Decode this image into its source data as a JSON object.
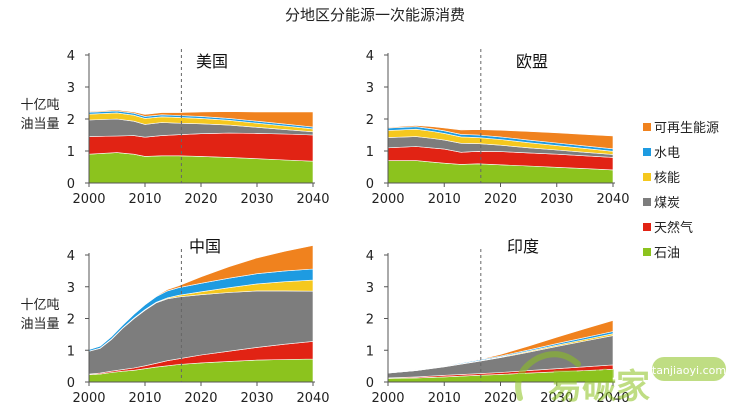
{
  "title": "分地区分能源一次能源消费",
  "ylabel": "十亿吨\n油当量",
  "legend": [
    {
      "label": "可再生能源",
      "color": "#F0821E"
    },
    {
      "label": "水电",
      "color": "#1E9BE1"
    },
    {
      "label": "核能",
      "color": "#F5C81E"
    },
    {
      "label": "煤炭",
      "color": "#7D7D7D"
    },
    {
      "label": "天然气",
      "color": "#E12314"
    },
    {
      "label": "石油",
      "color": "#8CC31E"
    }
  ],
  "watermark": {
    "text": "易碳家",
    "domain": "tanjiaoyi.com"
  },
  "chart_data": [
    {
      "type": "area",
      "title": "美国",
      "x": [
        2000,
        2005,
        2008,
        2010,
        2013,
        2016,
        2020,
        2025,
        2030,
        2035,
        2040
      ],
      "xticks": [
        2000,
        2010,
        2020,
        2030,
        2040
      ],
      "xlim": [
        2000,
        2040
      ],
      "ylim": [
        0,
        4
      ],
      "yticks": [
        0,
        1,
        2,
        3,
        4
      ],
      "divider": 2016.5,
      "stack_order": [
        "石油",
        "天然气",
        "煤炭",
        "核能",
        "水电",
        "可再生能源"
      ],
      "series": [
        {
          "name": "石油",
          "values": [
            0.9,
            0.95,
            0.9,
            0.83,
            0.85,
            0.85,
            0.83,
            0.8,
            0.76,
            0.72,
            0.68
          ]
        },
        {
          "name": "天然气",
          "values": [
            0.55,
            0.52,
            0.58,
            0.6,
            0.63,
            0.66,
            0.71,
            0.76,
            0.79,
            0.81,
            0.82
          ]
        },
        {
          "name": "煤炭",
          "values": [
            0.52,
            0.53,
            0.45,
            0.4,
            0.41,
            0.36,
            0.31,
            0.25,
            0.19,
            0.14,
            0.1
          ]
        },
        {
          "name": "核能",
          "values": [
            0.18,
            0.19,
            0.19,
            0.19,
            0.18,
            0.18,
            0.17,
            0.15,
            0.13,
            0.11,
            0.09
          ]
        },
        {
          "name": "水电",
          "values": [
            0.06,
            0.06,
            0.06,
            0.06,
            0.06,
            0.06,
            0.06,
            0.06,
            0.06,
            0.06,
            0.06
          ]
        },
        {
          "name": "可再生能源",
          "values": [
            0.02,
            0.03,
            0.04,
            0.06,
            0.07,
            0.09,
            0.14,
            0.21,
            0.29,
            0.38,
            0.47
          ]
        }
      ]
    },
    {
      "type": "area",
      "title": "欧盟",
      "x": [
        2000,
        2005,
        2008,
        2010,
        2013,
        2016,
        2020,
        2025,
        2030,
        2035,
        2040
      ],
      "xticks": [
        2000,
        2010,
        2020,
        2030,
        2040
      ],
      "xlim": [
        2000,
        2040
      ],
      "ylim": [
        0,
        4
      ],
      "yticks": [
        0,
        1,
        2,
        3,
        4
      ],
      "divider": 2016.5,
      "stack_order": [
        "石油",
        "天然气",
        "煤炭",
        "核能",
        "水电",
        "可再生能源"
      ],
      "series": [
        {
          "name": "石油",
          "values": [
            0.7,
            0.7,
            0.65,
            0.62,
            0.58,
            0.6,
            0.57,
            0.53,
            0.49,
            0.45,
            0.41
          ]
        },
        {
          "name": "天然气",
          "values": [
            0.4,
            0.44,
            0.44,
            0.44,
            0.38,
            0.39,
            0.41,
            0.41,
            0.41,
            0.4,
            0.39
          ]
        },
        {
          "name": "煤炭",
          "values": [
            0.32,
            0.31,
            0.3,
            0.28,
            0.28,
            0.24,
            0.2,
            0.16,
            0.13,
            0.11,
            0.09
          ]
        },
        {
          "name": "核能",
          "values": [
            0.22,
            0.23,
            0.22,
            0.21,
            0.2,
            0.19,
            0.18,
            0.16,
            0.14,
            0.12,
            0.1
          ]
        },
        {
          "name": "水电",
          "values": [
            0.08,
            0.08,
            0.08,
            0.08,
            0.08,
            0.08,
            0.08,
            0.08,
            0.08,
            0.08,
            0.08
          ]
        },
        {
          "name": "可再生能源",
          "values": [
            0.02,
            0.04,
            0.07,
            0.09,
            0.14,
            0.17,
            0.21,
            0.27,
            0.32,
            0.36,
            0.4
          ]
        }
      ]
    },
    {
      "type": "area",
      "title": "中国",
      "x": [
        2000,
        2002,
        2004,
        2006,
        2008,
        2010,
        2012,
        2014,
        2016,
        2020,
        2025,
        2030,
        2035,
        2040
      ],
      "xticks": [
        2000,
        2010,
        2020,
        2030,
        2040
      ],
      "xlim": [
        2000,
        2040
      ],
      "ylim": [
        0,
        4
      ],
      "yticks": [
        0,
        1,
        2,
        3,
        4
      ],
      "divider": 2016.5,
      "stack_order": [
        "石油",
        "天然气",
        "煤炭",
        "核能",
        "水电",
        "可再生能源"
      ],
      "series": [
        {
          "name": "石油",
          "values": [
            0.23,
            0.25,
            0.3,
            0.34,
            0.37,
            0.42,
            0.47,
            0.51,
            0.55,
            0.6,
            0.65,
            0.69,
            0.71,
            0.72
          ]
        },
        {
          "name": "天然气",
          "values": [
            0.02,
            0.03,
            0.04,
            0.05,
            0.07,
            0.09,
            0.12,
            0.16,
            0.18,
            0.25,
            0.32,
            0.4,
            0.48,
            0.56
          ]
        },
        {
          "name": "煤炭",
          "values": [
            0.72,
            0.78,
            1.0,
            1.3,
            1.55,
            1.75,
            1.9,
            1.95,
            1.95,
            1.9,
            1.85,
            1.78,
            1.68,
            1.58
          ]
        },
        {
          "name": "核能",
          "values": [
            0.0,
            0.01,
            0.01,
            0.01,
            0.02,
            0.02,
            0.02,
            0.03,
            0.05,
            0.09,
            0.15,
            0.22,
            0.29,
            0.35
          ]
        },
        {
          "name": "水电",
          "values": [
            0.05,
            0.06,
            0.08,
            0.09,
            0.12,
            0.15,
            0.18,
            0.22,
            0.24,
            0.27,
            0.3,
            0.32,
            0.34,
            0.35
          ]
        },
        {
          "name": "可再生能源",
          "values": [
            0.0,
            0.0,
            0.01,
            0.01,
            0.01,
            0.01,
            0.02,
            0.04,
            0.06,
            0.2,
            0.36,
            0.5,
            0.62,
            0.74
          ]
        }
      ]
    },
    {
      "type": "area",
      "title": "印度",
      "x": [
        2000,
        2005,
        2010,
        2016,
        2020,
        2025,
        2030,
        2035,
        2040
      ],
      "xticks": [
        2000,
        2010,
        2020,
        2030,
        2040
      ],
      "xlim": [
        2000,
        2040
      ],
      "ylim": [
        0,
        4
      ],
      "yticks": [
        0,
        1,
        2,
        3,
        4
      ],
      "divider": 2016.5,
      "stack_order": [
        "石油",
        "天然气",
        "煤炭",
        "核能",
        "水电",
        "可再生能源"
      ],
      "series": [
        {
          "name": "石油",
          "values": [
            0.11,
            0.13,
            0.16,
            0.21,
            0.24,
            0.28,
            0.32,
            0.36,
            0.4
          ]
        },
        {
          "name": "天然气",
          "values": [
            0.02,
            0.03,
            0.05,
            0.05,
            0.06,
            0.08,
            0.1,
            0.12,
            0.14
          ]
        },
        {
          "name": "煤炭",
          "values": [
            0.15,
            0.2,
            0.27,
            0.39,
            0.47,
            0.58,
            0.7,
            0.81,
            0.92
          ]
        },
        {
          "name": "核能",
          "values": [
            0.0,
            0.0,
            0.01,
            0.01,
            0.02,
            0.03,
            0.04,
            0.05,
            0.06
          ]
        },
        {
          "name": "水电",
          "values": [
            0.01,
            0.02,
            0.02,
            0.03,
            0.03,
            0.04,
            0.05,
            0.06,
            0.07
          ]
        },
        {
          "name": "可再生能源",
          "values": [
            0.0,
            0.0,
            0.0,
            0.01,
            0.05,
            0.12,
            0.2,
            0.28,
            0.35
          ]
        }
      ]
    }
  ]
}
